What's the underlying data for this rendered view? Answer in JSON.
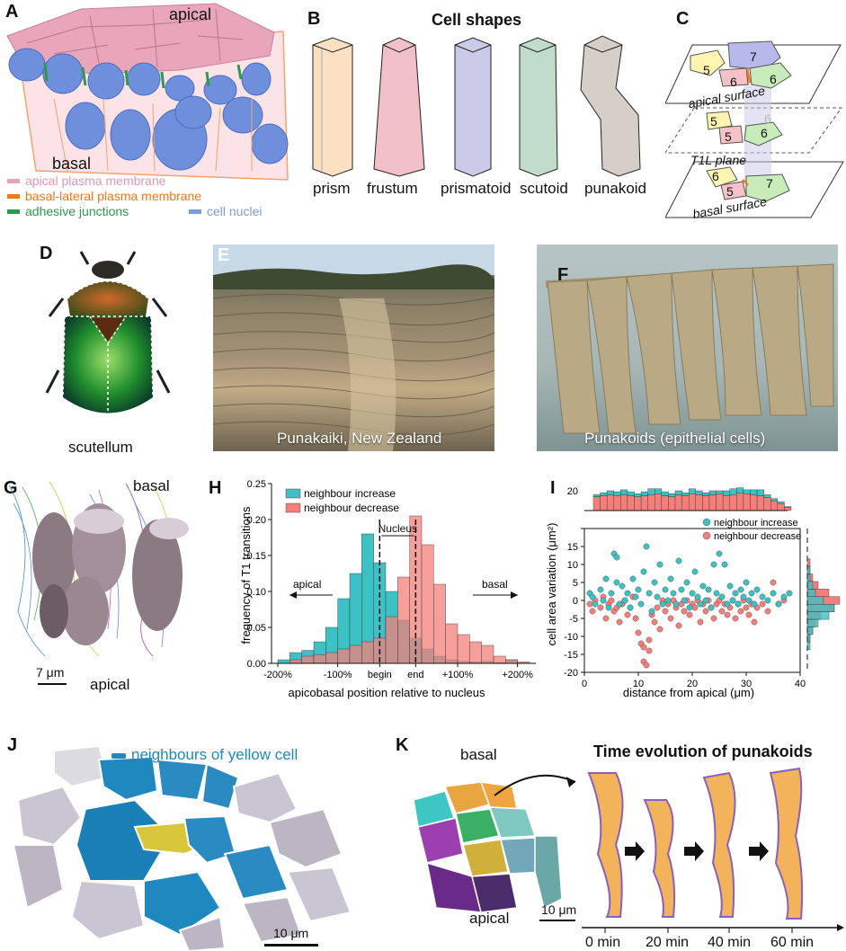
{
  "panels": {
    "a": {
      "label": "A",
      "apical": "apical",
      "basal": "basal",
      "legend": {
        "apical_membrane": "apical plasma membrane",
        "basal_lateral_membrane": "basal-lateral plasma membrane",
        "adhesive_junctions": "adhesive junctions",
        "cell_nuclei": "cell nuclei"
      },
      "colors": {
        "apical_membrane": "#e7a2c0",
        "basal_lateral_membrane": "#f07a1c",
        "adhesive_junctions": "#2f9a4a",
        "cell_nuclei": "#7f9ce0"
      }
    },
    "b": {
      "label": "B",
      "title": "Cell shapes",
      "shapes": [
        "prism",
        "frustum",
        "prismatoid",
        "scutoid",
        "punakoid"
      ]
    },
    "c": {
      "label": "C",
      "apical_surface": "apical surface",
      "t1l_plane": "T1L plane",
      "basal_surface": "basal surface",
      "apical_numbers": [
        "5",
        "7",
        "6",
        "6"
      ],
      "mid_numbers": [
        "5",
        "5",
        "6",
        "6"
      ],
      "basal_numbers": [
        "6",
        "5",
        "7"
      ]
    },
    "d": {
      "label": "D",
      "caption": "scutellum"
    },
    "e": {
      "label": "E",
      "caption": "Punakaiki, New Zealand"
    },
    "f": {
      "label": "F",
      "caption": "Punakoids (epithelial cells)"
    },
    "g": {
      "label": "G",
      "basal": "basal",
      "apical": "apical",
      "scale": "7 μm"
    },
    "h": {
      "label": "H",
      "nucleus": "Nucleus",
      "apical_arrow": "apical",
      "basal_arrow": "basal"
    },
    "i": {
      "label": "I",
      "top_hist_tick": "20"
    },
    "j": {
      "label": "J",
      "legend": "neighbours of yellow cell",
      "scale": "10 μm"
    },
    "k": {
      "label": "K",
      "title": "Time evolution of punakoids",
      "basal": "basal",
      "apical": "apical",
      "scale": "10 μm",
      "times": [
        "0 min",
        "20 min",
        "40 min",
        "60 min"
      ]
    }
  },
  "chart_data": [
    {
      "type": "bar",
      "panel": "H",
      "xlabel": "apicobasal position relative to nucleus",
      "ylabel": "frequency of T1 transitions",
      "xticks": [
        "-200%",
        "-100%",
        "begin",
        "end",
        "+100%",
        "+200%"
      ],
      "yticks": [
        "0.00",
        "0.05",
        "0.10",
        "0.15",
        "0.20",
        "0.25"
      ],
      "ylim": [
        0,
        0.25
      ],
      "bin_width_pct": 20,
      "x_start_pct": -180,
      "reference_lines": [
        "begin",
        "end"
      ],
      "legend_position": "top-left",
      "series": [
        {
          "name": "neighbour increase",
          "color": "#3cc2c4",
          "values": [
            0.005,
            0.015,
            0.018,
            0.03,
            0.05,
            0.09,
            0.125,
            0.18,
            0.14,
            0.1,
            0.06,
            0.035,
            0.02,
            0.01,
            0.005,
            0.003,
            0.002,
            0.003,
            0.001,
            0.005,
            0.0
          ]
        },
        {
          "name": "neighbour decrease",
          "color": "#f47f7a",
          "values": [
            0.0,
            0.005,
            0.01,
            0.012,
            0.015,
            0.02,
            0.025,
            0.03,
            0.035,
            0.065,
            0.12,
            0.205,
            0.165,
            0.11,
            0.055,
            0.04,
            0.03,
            0.025,
            0.01,
            0.005,
            0.002
          ]
        }
      ]
    },
    {
      "type": "scatter",
      "panel": "I",
      "xlabel": "distance from apical (μm)",
      "ylabel": "cell area variation (μm²)",
      "xticks": [
        "0",
        "10",
        "20",
        "30",
        "40"
      ],
      "yticks": [
        "-20",
        "-15",
        "-10",
        "-5",
        "0",
        "5",
        "10",
        "15",
        "20"
      ],
      "xlim": [
        0,
        40
      ],
      "ylim": [
        -20,
        20
      ],
      "legend_position": "top-right",
      "series": [
        {
          "name": "neighbour increase",
          "color": "#3cc2c4",
          "points": [
            [
              1,
              2
            ],
            [
              1.5,
              1
            ],
            [
              2,
              -1
            ],
            [
              3,
              3
            ],
            [
              3.5,
              0
            ],
            [
              4,
              6
            ],
            [
              4.5,
              -2
            ],
            [
              5,
              2
            ],
            [
              5.5,
              13
            ],
            [
              6,
              12
            ],
            [
              6,
              5
            ],
            [
              6.5,
              -1
            ],
            [
              7,
              4
            ],
            [
              7.5,
              0
            ],
            [
              8,
              2
            ],
            [
              8.5,
              -2
            ],
            [
              9,
              6
            ],
            [
              9.5,
              1
            ],
            [
              10,
              3
            ],
            [
              10.5,
              -1
            ],
            [
              11,
              8
            ],
            [
              11.5,
              15
            ],
            [
              12,
              2
            ],
            [
              12.5,
              -3
            ],
            [
              13,
              5
            ],
            [
              13.5,
              1
            ],
            [
              14,
              10
            ],
            [
              14.5,
              -1
            ],
            [
              15,
              3
            ],
            [
              15.5,
              0
            ],
            [
              16,
              6
            ],
            [
              16.5,
              2
            ],
            [
              17,
              -1
            ],
            [
              17.5,
              11
            ],
            [
              18,
              3
            ],
            [
              18.5,
              0
            ],
            [
              19,
              5
            ],
            [
              19.5,
              -2
            ],
            [
              20,
              2
            ],
            [
              20.5,
              8
            ],
            [
              21,
              1
            ],
            [
              21.5,
              -1
            ],
            [
              22,
              4
            ],
            [
              22.5,
              0
            ],
            [
              23,
              3
            ],
            [
              23.5,
              -2
            ],
            [
              24,
              10
            ],
            [
              24.5,
              2
            ],
            [
              25,
              13
            ],
            [
              25.5,
              1
            ],
            [
              26,
              10
            ],
            [
              26.5,
              -1
            ],
            [
              27,
              4
            ],
            [
              27.5,
              0
            ],
            [
              28,
              2
            ],
            [
              28.5,
              -1
            ],
            [
              29,
              3
            ],
            [
              29.5,
              1
            ],
            [
              30,
              5
            ],
            [
              30.5,
              0
            ],
            [
              31,
              2
            ],
            [
              31.5,
              -1
            ],
            [
              32,
              3
            ],
            [
              33,
              1
            ],
            [
              34,
              0
            ],
            [
              35,
              2
            ],
            [
              36,
              -1
            ],
            [
              37,
              1
            ],
            [
              38,
              2
            ]
          ]
        },
        {
          "name": "neighbour decrease",
          "color": "#f47f7a",
          "points": [
            [
              1,
              -1
            ],
            [
              1.5,
              -3
            ],
            [
              2,
              0
            ],
            [
              3,
              -2
            ],
            [
              3.5,
              1
            ],
            [
              4,
              -5
            ],
            [
              4.5,
              -1
            ],
            [
              5,
              0
            ],
            [
              5.5,
              -3
            ],
            [
              6,
              -2
            ],
            [
              6.5,
              -6
            ],
            [
              7,
              -1
            ],
            [
              7.5,
              0
            ],
            [
              8,
              -4
            ],
            [
              8.5,
              -2
            ],
            [
              9,
              1
            ],
            [
              9.5,
              -5
            ],
            [
              10,
              -9
            ],
            [
              10.5,
              -12
            ],
            [
              11,
              -13
            ],
            [
              11,
              -17
            ],
            [
              11.5,
              -18
            ],
            [
              12,
              -14
            ],
            [
              12,
              -11
            ],
            [
              12.5,
              -4
            ],
            [
              13,
              -6
            ],
            [
              13.5,
              -2
            ],
            [
              14,
              -8
            ],
            [
              14.5,
              0
            ],
            [
              15,
              -3
            ],
            [
              15.5,
              -1
            ],
            [
              16,
              -5
            ],
            [
              16.5,
              0
            ],
            [
              17,
              -2
            ],
            [
              17.5,
              -7
            ],
            [
              18,
              -1
            ],
            [
              18.5,
              -3
            ],
            [
              19,
              0
            ],
            [
              19.5,
              -4
            ],
            [
              20,
              -1
            ],
            [
              20.5,
              -2
            ],
            [
              21,
              0
            ],
            [
              21.5,
              -6
            ],
            [
              22,
              -1
            ],
            [
              22.5,
              -3
            ],
            [
              23,
              0
            ],
            [
              23.5,
              -2
            ],
            [
              24,
              -5
            ],
            [
              24.5,
              -1
            ],
            [
              25,
              0
            ],
            [
              25.5,
              -3
            ],
            [
              26,
              -1
            ],
            [
              26.5,
              -4
            ],
            [
              27,
              -2
            ],
            [
              27.5,
              0
            ],
            [
              28,
              -5
            ],
            [
              28.5,
              -1
            ],
            [
              29,
              -3
            ],
            [
              29.5,
              0
            ],
            [
              30,
              -2
            ],
            [
              30.5,
              -4
            ],
            [
              31,
              -1
            ],
            [
              31.5,
              -6
            ],
            [
              32,
              -2
            ],
            [
              33,
              -1
            ],
            [
              34,
              -3
            ],
            [
              35,
              5
            ],
            [
              36,
              -1
            ],
            [
              37,
              0
            ]
          ]
        }
      ],
      "top_histogram": {
        "increase": [
          2,
          3,
          4,
          4,
          5,
          4,
          3,
          4,
          6,
          5,
          4,
          3,
          4,
          3,
          5,
          4,
          3,
          4,
          3,
          5,
          6,
          5,
          4,
          5,
          6,
          3,
          2,
          2,
          1
        ],
        "decrease": [
          14,
          15,
          16,
          15,
          16,
          15,
          14,
          15,
          16,
          17,
          15,
          14,
          16,
          15,
          17,
          16,
          15,
          16,
          17,
          15,
          16,
          18,
          17,
          16,
          15,
          13,
          10,
          7,
          3
        ]
      },
      "side_histogram": {
        "increase": [
          0,
          0,
          0,
          0,
          0,
          1,
          1,
          2,
          3,
          6,
          10,
          8,
          4,
          2,
          1,
          1,
          0,
          0,
          0
        ],
        "decrease": [
          0,
          0,
          0,
          0,
          1,
          1,
          2,
          4,
          8,
          12,
          10,
          5,
          3,
          2,
          1,
          0,
          0,
          0,
          0
        ]
      }
    }
  ]
}
